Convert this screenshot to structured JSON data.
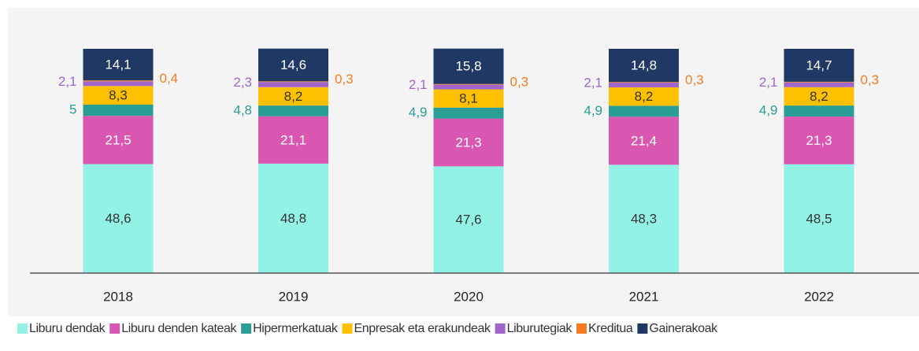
{
  "chart_data": {
    "type": "stacked_bar",
    "categories": [
      "2018",
      "2019",
      "2020",
      "2021",
      "2022"
    ],
    "ylim": [
      0,
      100
    ],
    "legend": "bottom",
    "series": [
      {
        "name": "Liburu dendak",
        "color": "#93f2e6",
        "values": [
          48.6,
          48.8,
          47.6,
          48.3,
          48.5
        ],
        "value_labels": [
          "48,6",
          "48,8",
          "47,6",
          "48,3",
          "48,5"
        ]
      },
      {
        "name": "Liburu denden kateak",
        "color": "#d957b0",
        "values": [
          21.5,
          21.1,
          21.3,
          21.4,
          21.3
        ],
        "value_labels": [
          "21,5",
          "21,1",
          "21,3",
          "21,4",
          "21,3"
        ]
      },
      {
        "name": "Hipermerkatuak",
        "color": "#2a9d94",
        "values": [
          5,
          4.8,
          4.9,
          4.9,
          4.9
        ],
        "value_labels": [
          "5",
          "4,8",
          "4,9",
          "4,9",
          "4,9"
        ]
      },
      {
        "name": "Enpresak eta erakundeak",
        "color": "#ffc000",
        "values": [
          8.3,
          8.2,
          8.1,
          8.2,
          8.2
        ],
        "value_labels": [
          "8,3",
          "8,2",
          "8,1",
          "8,2",
          "8,2"
        ]
      },
      {
        "name": "Liburutegiak",
        "color": "#a066cc",
        "values": [
          2.1,
          2.3,
          2.1,
          2.1,
          2.1
        ],
        "value_labels": [
          "2,1",
          "2,3",
          "2,1",
          "2,1",
          "2,1"
        ]
      },
      {
        "name": "Kreditua",
        "color": "#f57c20",
        "values": [
          0.4,
          0.3,
          0.3,
          0.3,
          0.3
        ],
        "value_labels": [
          "0,4",
          "0,3",
          "0,3",
          "0,3",
          "0,3"
        ]
      },
      {
        "name": "Gainerakoak",
        "color": "#1f3864",
        "values": [
          14.1,
          14.6,
          15.8,
          14.8,
          14.7
        ],
        "value_labels": [
          "14,1",
          "14,6",
          "15,8",
          "14,8",
          "14,7"
        ]
      }
    ]
  }
}
